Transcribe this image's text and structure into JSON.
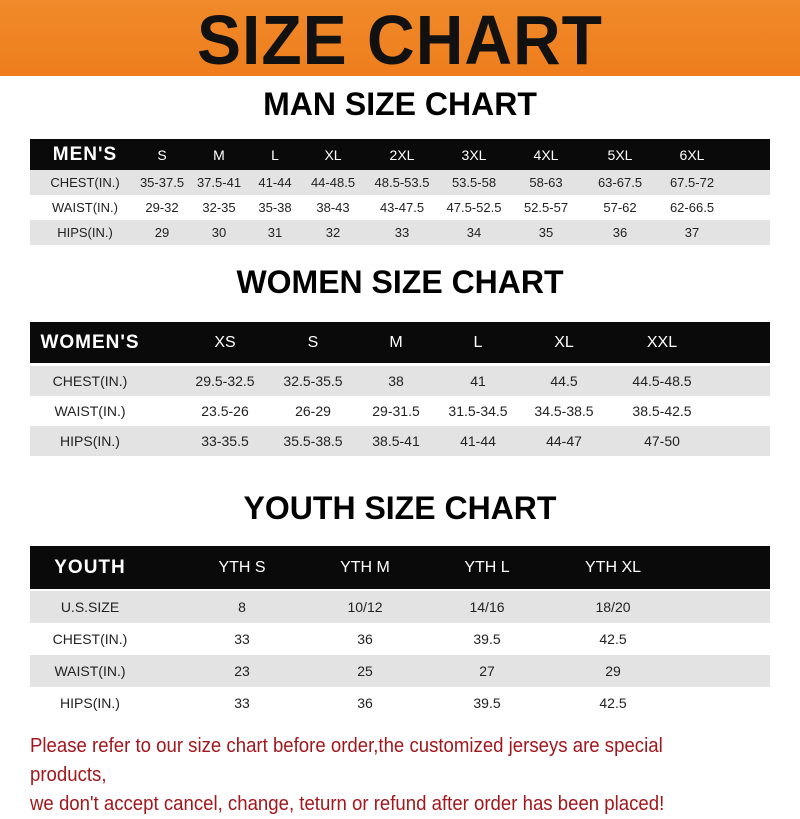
{
  "title": "SIZE CHART",
  "colors": {
    "banner": "#ef831f",
    "header_row": "#0a0a0a",
    "note_text": "#a3161b"
  },
  "men": {
    "title": "MAN SIZE CHART",
    "header": [
      "MEN'S",
      "S",
      "M",
      "L",
      "XL",
      "2XL",
      "3XL",
      "4XL",
      "5XL",
      "6XL"
    ],
    "rows": [
      [
        "CHEST(IN.)",
        "35-37.5",
        "37.5-41",
        "41-44",
        "44-48.5",
        "48.5-53.5",
        "53.5-58",
        "58-63",
        "63-67.5",
        "67.5-72"
      ],
      [
        "WAIST(IN.)",
        "29-32",
        "32-35",
        "35-38",
        "38-43",
        "43-47.5",
        "47.5-52.5",
        "52.5-57",
        "57-62",
        "62-66.5"
      ],
      [
        "HIPS(IN.)",
        "29",
        "30",
        "31",
        "32",
        "33",
        "34",
        "35",
        "36",
        "37"
      ]
    ]
  },
  "women": {
    "title": "WOMEN SIZE CHART",
    "header": [
      "WOMEN'S",
      "XS",
      "S",
      "M",
      "L",
      "XL",
      "XXL"
    ],
    "rows": [
      [
        "CHEST(IN.)",
        "29.5-32.5",
        "32.5-35.5",
        "38",
        "41",
        "44.5",
        "44.5-48.5"
      ],
      [
        "WAIST(IN.)",
        "23.5-26",
        "26-29",
        "29-31.5",
        "31.5-34.5",
        "34.5-38.5",
        "38.5-42.5"
      ],
      [
        "HIPS(IN.)",
        "33-35.5",
        "35.5-38.5",
        "38.5-41",
        "41-44",
        "44-47",
        "47-50"
      ]
    ]
  },
  "youth": {
    "title": "YOUTH SIZE CHART",
    "header": [
      "YOUTH",
      "YTH S",
      "YTH M",
      "YTH L",
      "YTH XL"
    ],
    "rows": [
      [
        "U.S.SIZE",
        "8",
        "10/12",
        "14/16",
        "18/20"
      ],
      [
        "CHEST(IN.)",
        "33",
        "36",
        "39.5",
        "42.5"
      ],
      [
        "WAIST(IN.)",
        "23",
        "25",
        "27",
        "29"
      ],
      [
        "HIPS(IN.)",
        "33",
        "36",
        "39.5",
        "42.5"
      ]
    ]
  },
  "note": {
    "line1": "Please refer to our size chart before order,the customized jerseys are special products,",
    "line2": "we don't accept cancel, change, teturn or refund after order has been placed!"
  }
}
